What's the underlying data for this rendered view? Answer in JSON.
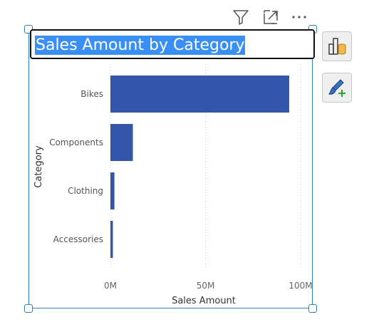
{
  "toolbar": {
    "filter_icon": "filter-icon",
    "focus_icon": "focus-mode-icon",
    "more_icon": "more-options-icon"
  },
  "visual": {
    "title": "Sales Amount by Category"
  },
  "side_panel": {
    "build_icon": "build-visual-icon",
    "format_icon": "format-visual-icon"
  },
  "colors": {
    "bar": "#3355aa",
    "selection": "#2f7fc1",
    "title_highlight": "#3a8ff7"
  },
  "chart_data": {
    "type": "bar",
    "orientation": "horizontal",
    "title": "Sales Amount by Category",
    "categories": [
      "Bikes",
      "Components",
      "Clothing",
      "Accessories"
    ],
    "values": [
      94000000,
      11800000,
      2100000,
      1300000
    ],
    "xlabel": "Sales Amount",
    "ylabel": "Category",
    "xlim": [
      0,
      100000000
    ],
    "xticks": [
      0,
      50000000,
      100000000
    ],
    "xtick_labels": [
      "0M",
      "50M",
      "100M"
    ],
    "grid": "vertical dotted",
    "legend": "none"
  }
}
